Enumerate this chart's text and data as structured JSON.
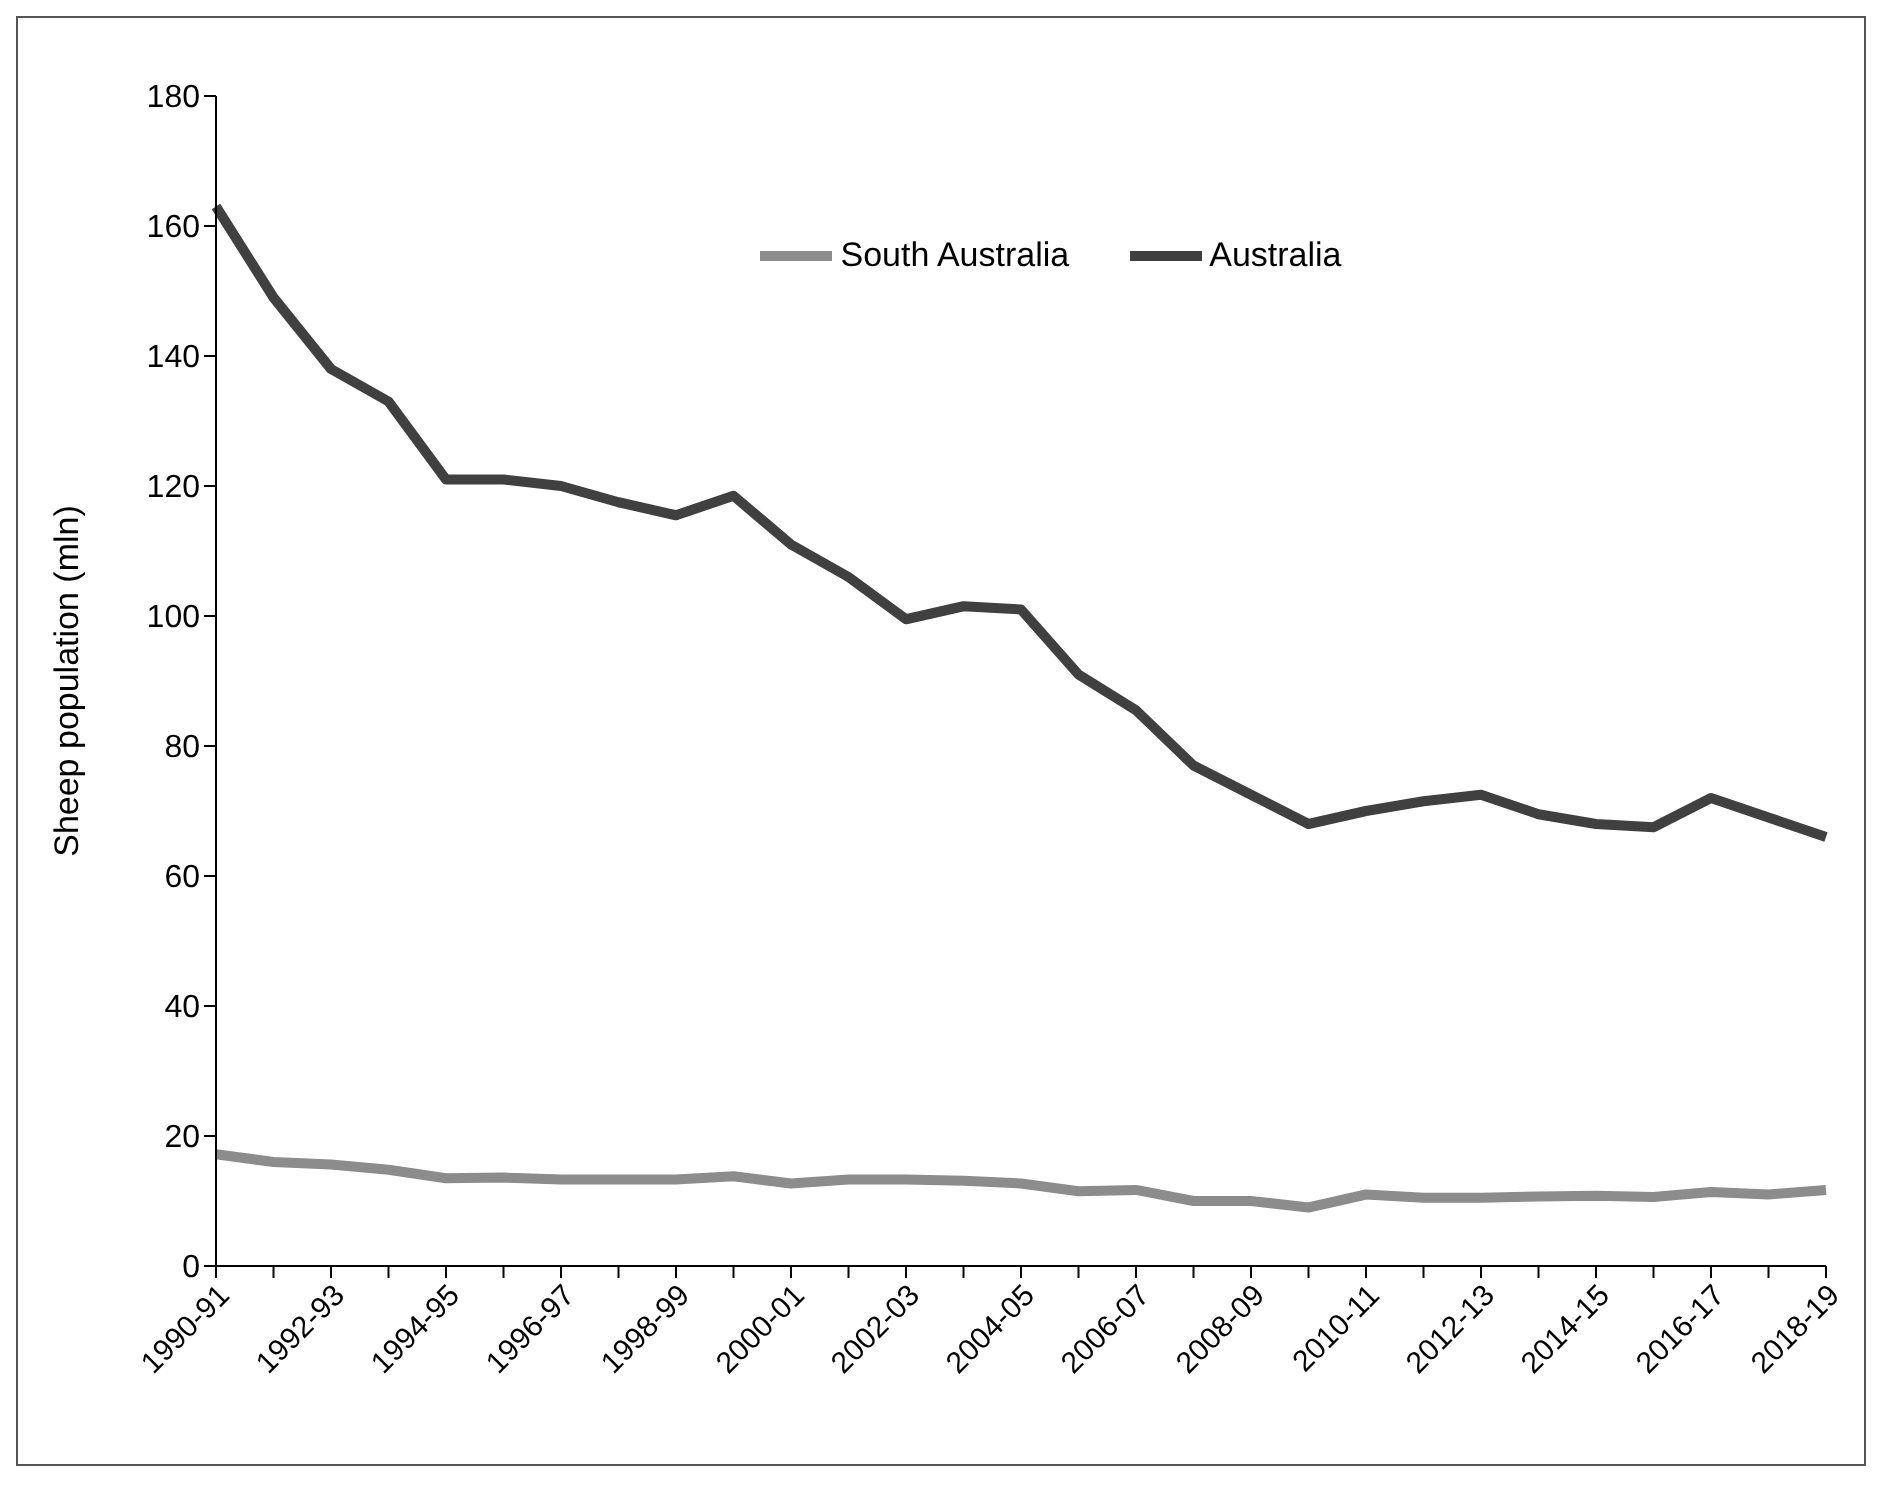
{
  "chart_data": {
    "type": "line",
    "ylabel": "Sheep population (mln)",
    "categories": [
      "1990-91",
      null,
      "1992-93",
      null,
      "1994-95",
      null,
      "1996-97",
      null,
      "1998-99",
      null,
      "2000-01",
      null,
      "2002-03",
      null,
      "2004-05",
      null,
      "2006-07",
      null,
      "2008-09",
      null,
      "2010-11",
      null,
      "2012-13",
      null,
      "2014-15",
      null,
      "2016-17",
      null,
      "2018-19"
    ],
    "series": [
      {
        "name": "South Australia",
        "color": "#8c8c8c",
        "values": [
          17.2,
          16,
          15.6,
          14.8,
          13.5,
          13.6,
          13.3,
          13.3,
          13.3,
          13.8,
          12.7,
          13.3,
          13.3,
          13.1,
          12.7,
          11.5,
          11.7,
          10,
          10,
          9,
          11,
          10.5,
          10.5,
          10.7,
          10.8,
          10.6,
          11.4,
          11,
          11.7
        ]
      },
      {
        "name": "Australia",
        "color": "#404040",
        "values": [
          163,
          149,
          138,
          133,
          121,
          121,
          120,
          117.5,
          115.5,
          118.5,
          111,
          106,
          99.5,
          101.5,
          101,
          91,
          85.5,
          77,
          72.5,
          68,
          70,
          71.5,
          72.5,
          69.5,
          68,
          67.5,
          72,
          69,
          66
        ]
      }
    ],
    "ylim": [
      0,
      180
    ],
    "yticks": [
      0,
      20,
      40,
      60,
      80,
      100,
      120,
      140,
      160,
      180
    ],
    "grid": false,
    "legend": "top",
    "marker": "none",
    "line_style": "solid"
  }
}
